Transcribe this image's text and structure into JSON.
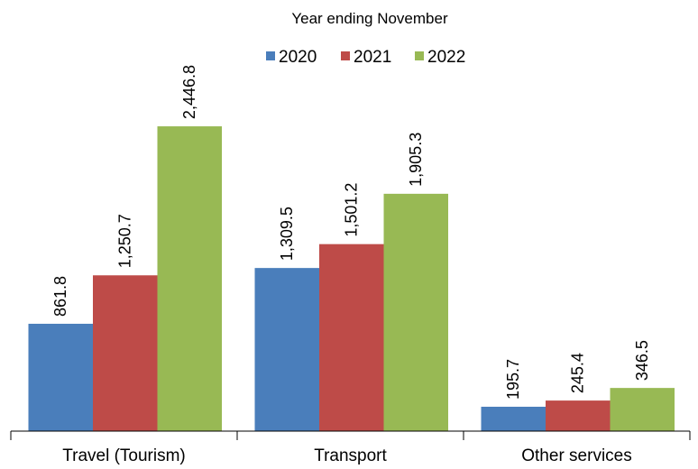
{
  "chart_data": {
    "type": "bar",
    "title": "Year ending November",
    "xlabel": "",
    "ylabel": "",
    "categories": [
      "Travel (Tourism)",
      "Transport",
      "Other services"
    ],
    "series": [
      {
        "name": "2020",
        "values": [
          861.8,
          1309.5,
          195.7
        ],
        "labels": [
          "861.8",
          "1,309.5",
          "195.7"
        ]
      },
      {
        "name": "2021",
        "values": [
          1250.7,
          1501.2,
          245.4
        ],
        "labels": [
          "1,250.7",
          "1,501.2",
          "245.4"
        ]
      },
      {
        "name": "2022",
        "values": [
          2446.8,
          1905.3,
          346.5
        ],
        "labels": [
          "2,446.8",
          "1,905.3",
          "346.5"
        ]
      }
    ],
    "ylim": [
      0,
      2650
    ],
    "grid": false,
    "legend_position": "top-center"
  },
  "colors": {
    "2020": "#4a7ebb",
    "2021": "#be4b48",
    "2022": "#98b954"
  }
}
